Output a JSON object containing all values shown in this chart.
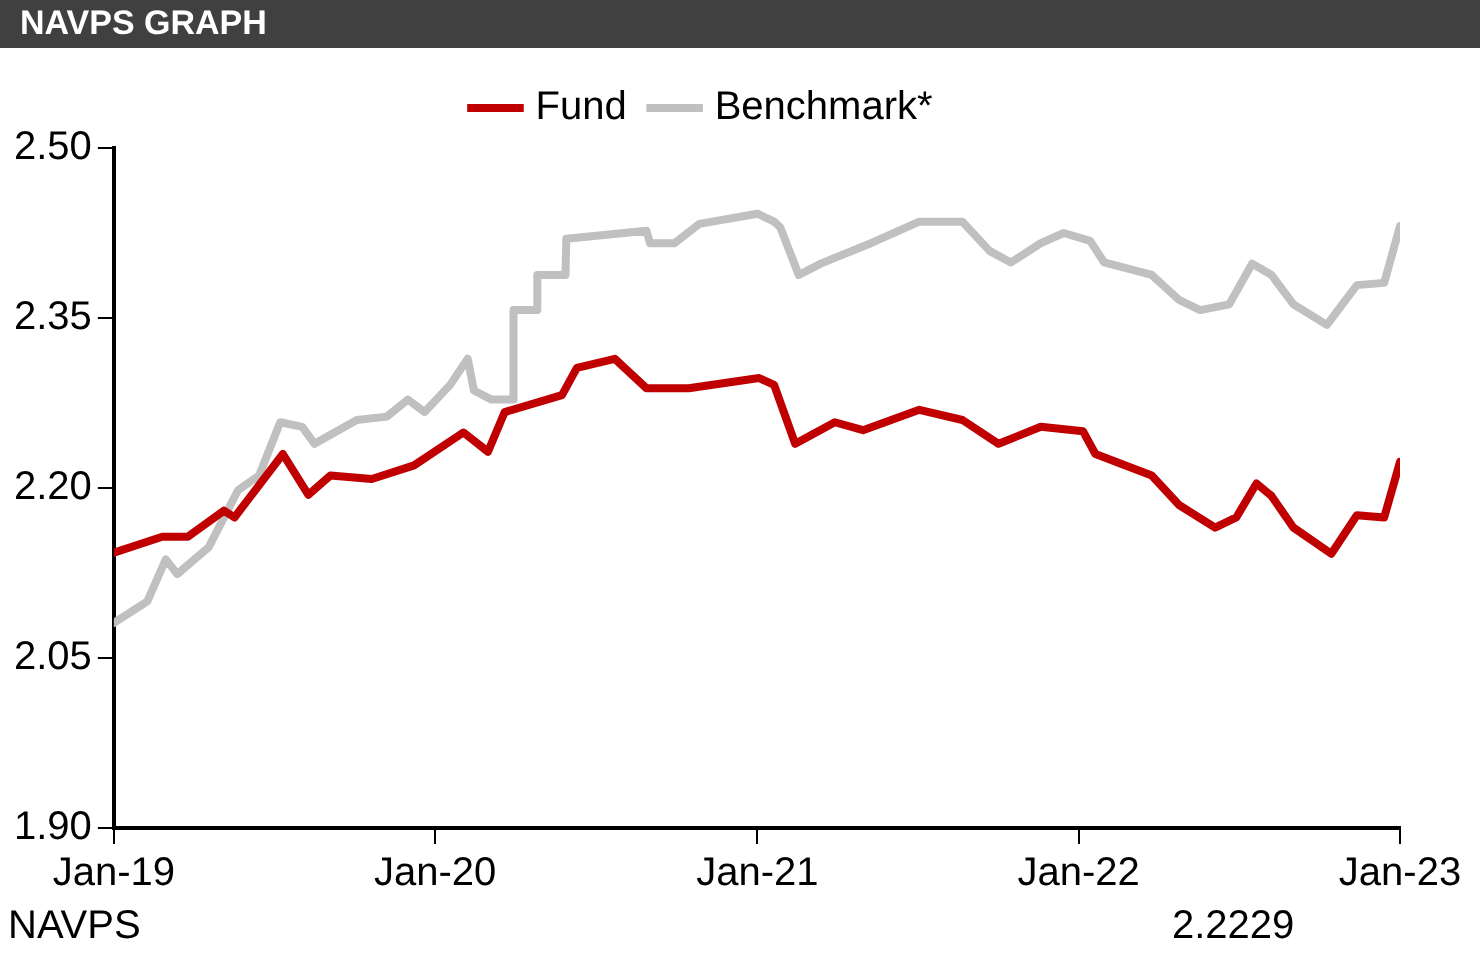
{
  "chart_data": {
    "type": "line",
    "title": "NAVPS GRAPH",
    "annotations": [
      "NAVPS",
      "2.2229"
    ],
    "ylim": [
      1.9,
      2.5
    ],
    "yticks": [
      {
        "value": 1.9,
        "label": "1.90"
      },
      {
        "value": 2.05,
        "label": "2.05"
      },
      {
        "value": 2.2,
        "label": "2.20"
      },
      {
        "value": 2.35,
        "label": "2.35"
      },
      {
        "value": 2.5,
        "label": "2.50"
      }
    ],
    "xlim": [
      "2019-01-01",
      "2023-01-01"
    ],
    "xticks": [
      {
        "value": "2019-01-01",
        "label": "Jan-19"
      },
      {
        "value": "2020-01-01",
        "label": "Jan-20"
      },
      {
        "value": "2021-01-01",
        "label": "Jan-21"
      },
      {
        "value": "2022-01-01",
        "label": "Jan-22"
      },
      {
        "value": "2023-01-01",
        "label": "Jan-23"
      }
    ],
    "grid": false,
    "legend": "top",
    "marker": "none",
    "line_style": "solid",
    "series": [
      {
        "name": "Fund",
        "color": "#c00000",
        "x": [
          "2019-01-01",
          "2019-02-25",
          "2019-03-26",
          "2019-05-06",
          "2019-05-18",
          "2019-07-12",
          "2019-08-10",
          "2019-09-04",
          "2019-10-21",
          "2019-12-08",
          "2020-02-02",
          "2020-03-01",
          "2020-03-20",
          "2020-05-24",
          "2020-06-10",
          "2020-07-23",
          "2020-08-28",
          "2020-10-15",
          "2021-01-03",
          "2021-01-20",
          "2021-02-13",
          "2021-03-30",
          "2021-05-01",
          "2021-07-04",
          "2021-08-22",
          "2021-10-02",
          "2021-11-19",
          "2022-01-06",
          "2022-01-20",
          "2022-03-25",
          "2022-04-25",
          "2022-06-05",
          "2022-06-29",
          "2022-07-22",
          "2022-08-08",
          "2022-09-02",
          "2022-10-15",
          "2022-11-13",
          "2022-12-14",
          "2023-01-01"
        ],
        "values": [
          2.143,
          2.157,
          2.157,
          2.18,
          2.174,
          2.23,
          2.194,
          2.211,
          2.208,
          2.22,
          2.249,
          2.232,
          2.267,
          2.282,
          2.306,
          2.314,
          2.288,
          2.288,
          2.297,
          2.291,
          2.239,
          2.258,
          2.251,
          2.269,
          2.26,
          2.239,
          2.254,
          2.25,
          2.23,
          2.211,
          2.185,
          2.165,
          2.174,
          2.204,
          2.193,
          2.165,
          2.142,
          2.176,
          2.174,
          2.223
        ]
      },
      {
        "name": "Benchmark*",
        "color": "#c0c0c0",
        "x": [
          "2019-01-01",
          "2019-02-08",
          "2019-03-01",
          "2019-03-14",
          "2019-04-19",
          "2019-05-22",
          "2019-06-15",
          "2019-07-09",
          "2019-08-03",
          "2019-08-17",
          "2019-10-04",
          "2019-11-07",
          "2019-12-01",
          "2019-12-20",
          "2020-01-18",
          "2020-02-07",
          "2020-02-14",
          "2020-03-05",
          "2020-03-29",
          "2020-03-30",
          "2020-04-25",
          "2020-04-26",
          "2020-05-28",
          "2020-05-29",
          "2020-08-28",
          "2020-09-01",
          "2020-09-29",
          "2020-10-27",
          "2021-01-01",
          "2021-01-20",
          "2021-01-27",
          "2021-02-17",
          "2021-03-14",
          "2021-05-10",
          "2021-07-04",
          "2021-08-22",
          "2021-09-22",
          "2021-10-16",
          "2021-11-19",
          "2021-12-15",
          "2022-01-14",
          "2022-01-30",
          "2022-03-25",
          "2022-04-25",
          "2022-05-19",
          "2022-06-21",
          "2022-07-17",
          "2022-08-08",
          "2022-09-02",
          "2022-10-10",
          "2022-11-13",
          "2022-12-14",
          "2023-01-01"
        ],
        "values": [
          2.081,
          2.1,
          2.137,
          2.124,
          2.148,
          2.198,
          2.211,
          2.258,
          2.254,
          2.239,
          2.26,
          2.263,
          2.278,
          2.267,
          2.291,
          2.314,
          2.286,
          2.278,
          2.278,
          2.357,
          2.357,
          2.388,
          2.388,
          2.42,
          2.427,
          2.416,
          2.416,
          2.433,
          2.442,
          2.435,
          2.43,
          2.388,
          2.398,
          2.416,
          2.435,
          2.435,
          2.409,
          2.399,
          2.416,
          2.425,
          2.418,
          2.399,
          2.388,
          2.366,
          2.357,
          2.362,
          2.398,
          2.388,
          2.362,
          2.344,
          2.379,
          2.381,
          2.431
        ]
      }
    ]
  }
}
